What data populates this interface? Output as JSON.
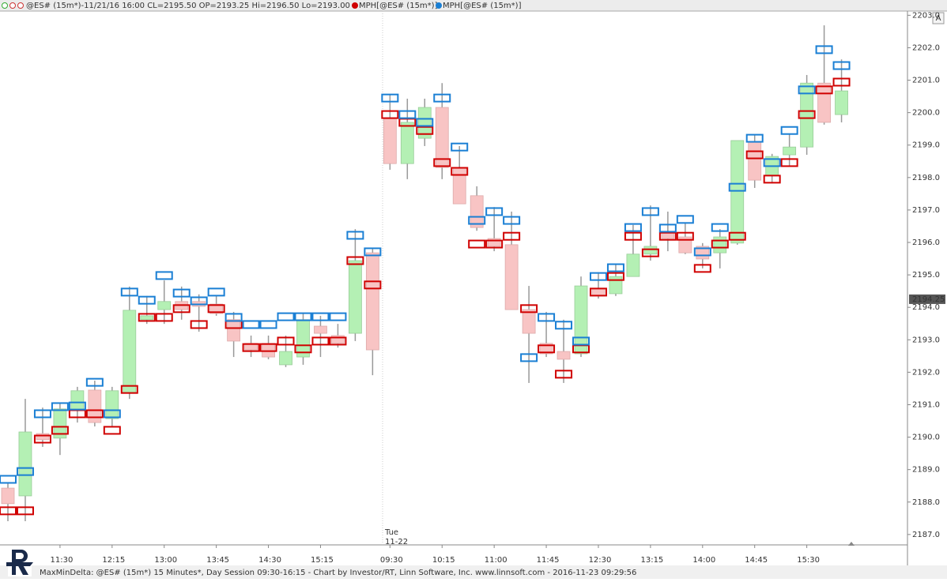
{
  "chart_data": {
    "type": "candlestick",
    "header": "@ES# (15m*)-11/21/16 16:00 CL=2195.50 OP=2193.25 Hi=2196.50 Lo=2193.00",
    "footer": "MaxMinDelta: @ES# (15m*) 15 Minutes*, Day Session 09:30-16:15 - Chart by Investor/RT, Linn Software, Inc. www.linnsoft.com - 2016-11-23 09:29:56",
    "session_label": [
      "Tue",
      "11-22"
    ],
    "button": "A",
    "price_marker": 2194.25,
    "categories": [
      null,
      null,
      null,
      "11:30",
      null,
      null,
      "12:15",
      null,
      null,
      "13:00",
      null,
      null,
      "13:45",
      null,
      null,
      "14:30",
      null,
      null,
      "15:15",
      null,
      null,
      null,
      "09:30",
      null,
      null,
      "10:15",
      null,
      null,
      "11:00",
      null,
      null,
      "11:45",
      null,
      null,
      "12:30",
      null,
      null,
      "13:15",
      null,
      null,
      "14:00",
      null,
      null,
      "14:45",
      null,
      null,
      "15:30",
      null,
      null
    ],
    "open": [
      2188.43,
      2188.19,
      2190.11,
      2189.97,
      2190.82,
      2191.45,
      2190.57,
      2191.38,
      2193.62,
      2193.93,
      2194.18,
      2194.18,
      2194.1,
      2193.62,
      2192.89,
      2192.89,
      2192.23,
      2192.47,
      2193.42,
      2193.13,
      2193.2,
      2195.68,
      2199.82,
      2198.43,
      2199.21,
      2200.16,
      2198.31,
      2197.44,
      2196.12,
      2195.93,
      2193.93,
      2192.89,
      2192.64,
      2192.57,
      2194.59,
      2194.42,
      2194.95,
      2195.64,
      2196.29,
      2196.17,
      2195.88,
      2195.68,
      2195.98,
      2199.09,
      2198.07,
      2198.7,
      2198.94,
      2200.91,
      2199.94
    ],
    "high": [
      2188.58,
      2191.18,
      2190.91,
      2191.06,
      2191.55,
      2191.74,
      2191.55,
      2194.64,
      2194.35,
      2194.83,
      2194.64,
      2194.4,
      2194.35,
      2193.86,
      2193.13,
      2193.13,
      2193.13,
      2193.83,
      2193.74,
      2193.49,
      2196.41,
      2195.81,
      2200.55,
      2200.43,
      2200.43,
      2200.91,
      2198.97,
      2197.73,
      2197.09,
      2196.95,
      2194.66,
      2193.86,
      2193.62,
      2194.95,
      2195.08,
      2195.32,
      2196.54,
      2197.14,
      2196.95,
      2196.61,
      2195.98,
      2196.41,
      2199.14,
      2199.33,
      2198.73,
      2199.33,
      2201.16,
      2202.69,
      2201.64
    ],
    "low": [
      2187.41,
      2187.41,
      2189.7,
      2189.45,
      2190.45,
      2190.33,
      2190.33,
      2191.18,
      2193.49,
      2193.49,
      2193.62,
      2193.25,
      2193.74,
      2192.47,
      2192.47,
      2192.4,
      2192.16,
      2192.23,
      2192.47,
      2192.76,
      2192.96,
      2191.91,
      2198.24,
      2197.95,
      2198.97,
      2197.95,
      2197.19,
      2196.36,
      2195.73,
      2193.93,
      2191.67,
      2192.47,
      2191.67,
      2192.47,
      2194.27,
      2194.35,
      2194.95,
      2195.44,
      2195.73,
      2195.64,
      2195.2,
      2195.2,
      2195.93,
      2197.68,
      2197.82,
      2198.36,
      2198.7,
      2199.63,
      2199.7
    ],
    "close": [
      2187.95,
      2190.16,
      2189.92,
      2190.87,
      2191.43,
      2190.45,
      2191.43,
      2193.91,
      2193.74,
      2194.18,
      2193.93,
      2194.03,
      2193.81,
      2192.96,
      2192.69,
      2192.47,
      2192.64,
      2193.62,
      2193.2,
      2192.89,
      2195.44,
      2192.69,
      2198.43,
      2199.7,
      2200.16,
      2198.31,
      2197.19,
      2196.46,
      2195.88,
      2193.93,
      2193.2,
      2192.57,
      2192.4,
      2194.66,
      2194.35,
      2194.95,
      2195.64,
      2195.88,
      2196.12,
      2195.68,
      2195.49,
      2196.17,
      2199.14,
      2197.92,
      2198.65,
      2198.94,
      2200.91,
      2199.7,
      2200.67
    ],
    "up_color": "#b4f0b4",
    "down_color": "#f8c4c4",
    "series": [
      {
        "name": "MPH[@ES# (15m*)]",
        "color": "#d00000",
        "values": [
          2187.73,
          2187.73,
          2189.94,
          2190.21,
          2190.72,
          2190.72,
          2190.21,
          2191.47,
          2193.69,
          2193.69,
          2193.96,
          2193.47,
          2193.96,
          2193.47,
          2192.76,
          2192.76,
          2192.96,
          2192.72,
          2192.96,
          2192.96,
          2195.44,
          2194.69,
          2199.94,
          2199.7,
          2199.45,
          2198.46,
          2198.19,
          2195.95,
          2195.95,
          2196.19,
          2193.96,
          2192.72,
          2191.94,
          2192.72,
          2194.47,
          2194.95,
          2196.19,
          2195.68,
          2196.19,
          2196.19,
          2195.2,
          2195.95,
          2196.19,
          2198.7,
          2197.95,
          2198.46,
          2199.94,
          2200.7,
          2200.94
        ]
      },
      {
        "name": "MPH[@ES# (15m*)]",
        "color": "#1a7fd4",
        "values": [
          2188.7,
          2188.94,
          2190.72,
          2190.94,
          2190.96,
          2191.69,
          2190.72,
          2194.47,
          2194.22,
          2194.98,
          2194.44,
          2194.2,
          2194.47,
          2193.69,
          2193.47,
          2193.47,
          2193.71,
          2193.71,
          2193.71,
          2193.71,
          2196.22,
          2195.71,
          2200.45,
          2199.94,
          2199.7,
          2200.45,
          2198.94,
          2196.68,
          2196.95,
          2196.68,
          2192.45,
          2193.69,
          2193.45,
          2192.96,
          2194.95,
          2195.22,
          2196.46,
          2196.95,
          2196.44,
          2196.71,
          2195.71,
          2196.46,
          2197.7,
          2199.21,
          2198.46,
          2199.45,
          2200.7,
          2201.94,
          2201.45
        ]
      }
    ],
    "ylim": [
      2186.68,
      2203.13
    ],
    "yticks": [
      {
        "value": 2187,
        "label": "2187.0"
      },
      {
        "value": 2188,
        "label": "2188.0"
      },
      {
        "value": 2189,
        "label": "2189.0"
      },
      {
        "value": 2190,
        "label": "2190.0"
      },
      {
        "value": 2191,
        "label": "2191.0"
      },
      {
        "value": 2192,
        "label": "2192.0"
      },
      {
        "value": 2193,
        "label": "2193.0"
      },
      {
        "value": 2194,
        "label": "2194.0"
      },
      {
        "value": 2195,
        "label": "2195.0"
      },
      {
        "value": 2196,
        "label": "2196.0"
      },
      {
        "value": 2197,
        "label": "2197.0"
      },
      {
        "value": 2198,
        "label": "2198.0"
      },
      {
        "value": 2199,
        "label": "2199.0"
      },
      {
        "value": 2200,
        "label": "2200.0"
      },
      {
        "value": 2201,
        "label": "2201.0"
      },
      {
        "value": 2202,
        "label": "2202.0"
      },
      {
        "value": 2203,
        "label": "2203.0"
      }
    ]
  }
}
